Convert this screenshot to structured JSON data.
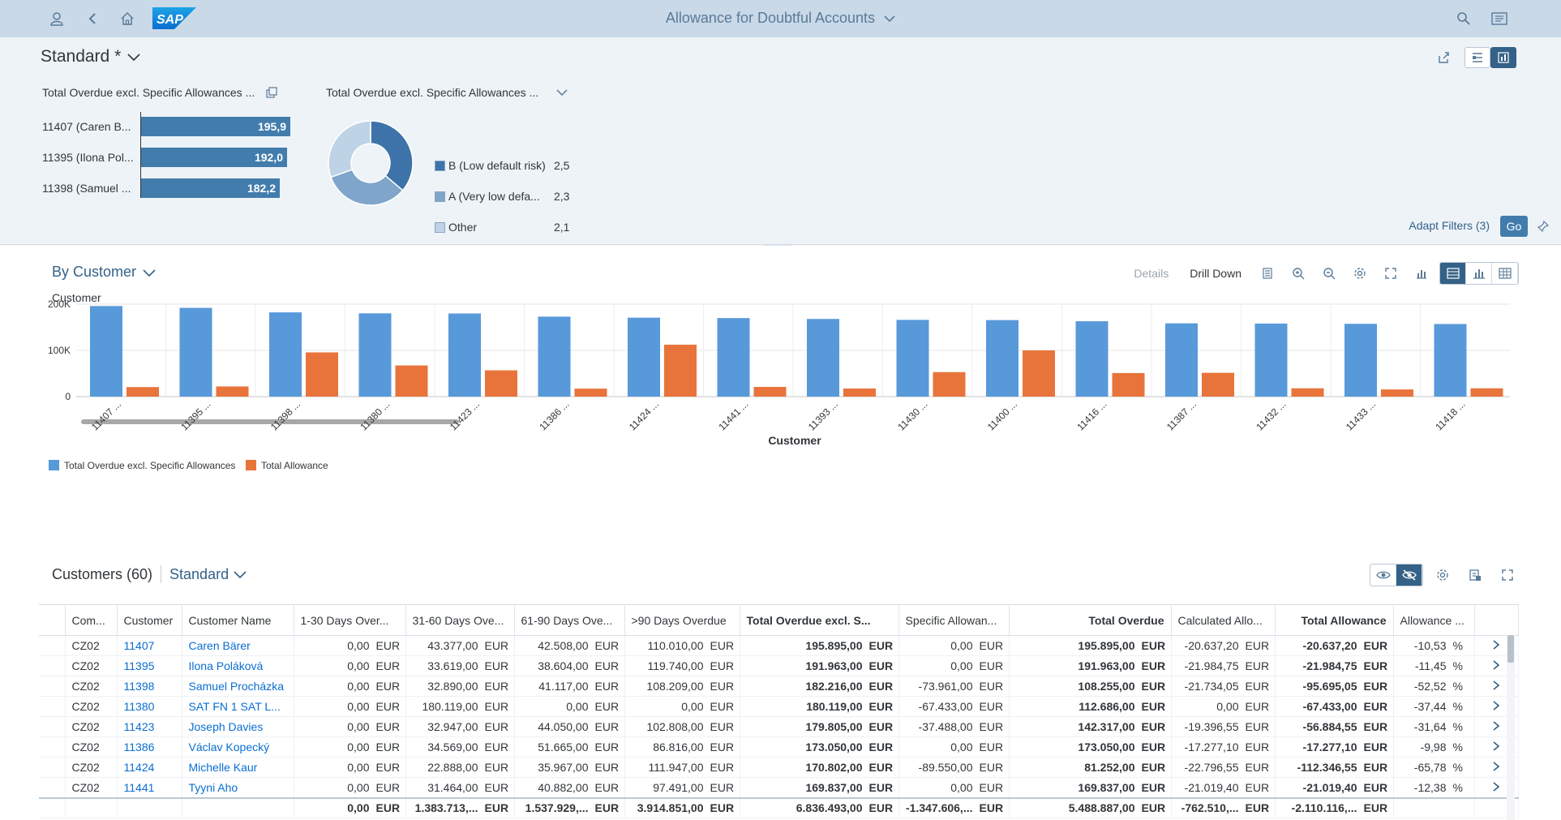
{
  "shell": {
    "title": "Allowance for Doubtful Accounts",
    "logo_text": "SAP"
  },
  "header": {
    "variant": "Standard *",
    "adapt_filters": "Adapt Filters (3)",
    "go": "Go"
  },
  "kpi_bar": {
    "title": "Total Overdue excl. Specific Allowances ...",
    "items": [
      {
        "label": "11407 (Caren B...",
        "value": "195,9",
        "fraction": 1.0
      },
      {
        "label": "11395 (Ilona Pol...",
        "value": "192,0",
        "fraction": 0.98
      },
      {
        "label": "11398 (Samuel ...",
        "value": "182,2",
        "fraction": 0.93
      }
    ]
  },
  "kpi_donut": {
    "title": "Total Overdue excl. Specific Allowances ...",
    "items": [
      {
        "label": "B (Low default risk)",
        "value": "2,5",
        "amount": 2.5,
        "color": "#3d73a8"
      },
      {
        "label": "A (Very low defa...",
        "value": "2,3",
        "amount": 2.3,
        "color": "#7fa5ca"
      },
      {
        "label": "Other",
        "value": "2,1",
        "amount": 2.1,
        "color": "#bfd3e6"
      }
    ]
  },
  "chart_section": {
    "view": "By Customer",
    "toolbar": {
      "details": "Details",
      "drill_down": "Drill Down"
    }
  },
  "chart_data": {
    "type": "bar",
    "title": "Customer",
    "xlabel": "Customer",
    "ylabel": "",
    "ylim": [
      0,
      200000
    ],
    "yticks": [
      {
        "value": 0,
        "label": "0"
      },
      {
        "value": 100000,
        "label": "100K"
      },
      {
        "value": 200000,
        "label": "200K"
      }
    ],
    "categories": [
      "11407 ...",
      "11395 ...",
      "11398 ...",
      "11380 ...",
      "11423 ...",
      "11386 ...",
      "11424 ...",
      "11441 ...",
      "11393 ...",
      "11430 ...",
      "11400 ...",
      "11416 ...",
      "11387 ...",
      "11432 ...",
      "11433 ...",
      "11418 ..."
    ],
    "series": [
      {
        "name": "Total Overdue excl. Specific Allowances",
        "color": "#5899da",
        "values": [
          195895,
          191963,
          182216,
          180119,
          179805,
          173050,
          170802,
          169837,
          168000,
          166000,
          165500,
          163000,
          158500,
          158000,
          157500,
          157000
        ]
      },
      {
        "name": "Total Allowance",
        "color": "#e8743b",
        "values": [
          20637,
          21985,
          95695,
          67433,
          56885,
          17277,
          112347,
          21019,
          17500,
          53000,
          100000,
          51000,
          51500,
          18000,
          15500,
          18000
        ]
      }
    ],
    "grid": true,
    "legend": "bottom-left"
  },
  "table": {
    "title": "Customers (60)",
    "variant": "Standard",
    "columns": [
      {
        "label": "",
        "cls": ""
      },
      {
        "label": "Com...",
        "cls": ""
      },
      {
        "label": "Customer",
        "cls": ""
      },
      {
        "label": "Customer Name",
        "cls": ""
      },
      {
        "label": "1-30 Days Over...",
        "cls": ""
      },
      {
        "label": "31-60 Days Ove...",
        "cls": ""
      },
      {
        "label": "61-90 Days Ove...",
        "cls": ""
      },
      {
        "label": ">90 Days Overdue",
        "cls": ""
      },
      {
        "label": "Total Overdue excl. S...",
        "cls": "bold"
      },
      {
        "label": "Specific Allowan...",
        "cls": ""
      },
      {
        "label": "Total Overdue",
        "cls": "num bold"
      },
      {
        "label": "Calculated Allo...",
        "cls": ""
      },
      {
        "label": "Total Allowance",
        "cls": "num bold"
      },
      {
        "label": "Allowance ...",
        "cls": ""
      },
      {
        "label": "",
        "cls": ""
      }
    ],
    "currency": "EUR",
    "percent": "%",
    "rows": [
      {
        "co": "CZ02",
        "cust": "11407",
        "name": "Caren Bärer",
        "d1": "0,00",
        "d2": "43.377,00",
        "d3": "42.508,00",
        "d4": "110.010,00",
        "tox": "195.895,00",
        "spec": "0,00",
        "to": "195.895,00",
        "calc": "-20.637,20",
        "ta": "-20.637,20",
        "pct": "-10,53"
      },
      {
        "co": "CZ02",
        "cust": "11395",
        "name": "Ilona Poláková",
        "d1": "0,00",
        "d2": "33.619,00",
        "d3": "38.604,00",
        "d4": "119.740,00",
        "tox": "191.963,00",
        "spec": "0,00",
        "to": "191.963,00",
        "calc": "-21.984,75",
        "ta": "-21.984,75",
        "pct": "-11,45"
      },
      {
        "co": "CZ02",
        "cust": "11398",
        "name": "Samuel Procházka",
        "d1": "0,00",
        "d2": "32.890,00",
        "d3": "41.117,00",
        "d4": "108.209,00",
        "tox": "182.216,00",
        "spec": "-73.961,00",
        "to": "108.255,00",
        "calc": "-21.734,05",
        "ta": "-95.695,05",
        "pct": "-52,52"
      },
      {
        "co": "CZ02",
        "cust": "11380",
        "name": "SAT FN 1 SAT L...",
        "d1": "0,00",
        "d2": "180.119,00",
        "d3": "0,00",
        "d4": "0,00",
        "tox": "180.119,00",
        "spec": "-67.433,00",
        "to": "112.686,00",
        "calc": "0,00",
        "ta": "-67.433,00",
        "pct": "-37,44"
      },
      {
        "co": "CZ02",
        "cust": "11423",
        "name": "Joseph Davies",
        "d1": "0,00",
        "d2": "32.947,00",
        "d3": "44.050,00",
        "d4": "102.808,00",
        "tox": "179.805,00",
        "spec": "-37.488,00",
        "to": "142.317,00",
        "calc": "-19.396,55",
        "ta": "-56.884,55",
        "pct": "-31,64"
      },
      {
        "co": "CZ02",
        "cust": "11386",
        "name": "Václav Kopecký",
        "d1": "0,00",
        "d2": "34.569,00",
        "d3": "51.665,00",
        "d4": "86.816,00",
        "tox": "173.050,00",
        "spec": "0,00",
        "to": "173.050,00",
        "calc": "-17.277,10",
        "ta": "-17.277,10",
        "pct": "-9,98"
      },
      {
        "co": "CZ02",
        "cust": "11424",
        "name": "Michelle Kaur",
        "d1": "0,00",
        "d2": "22.888,00",
        "d3": "35.967,00",
        "d4": "111.947,00",
        "tox": "170.802,00",
        "spec": "-89.550,00",
        "to": "81.252,00",
        "calc": "-22.796,55",
        "ta": "-112.346,55",
        "pct": "-65,78"
      },
      {
        "co": "CZ02",
        "cust": "11441",
        "name": "Tyyni Aho",
        "d1": "0,00",
        "d2": "31.464,00",
        "d3": "40.882,00",
        "d4": "97.491,00",
        "tox": "169.837,00",
        "spec": "0,00",
        "to": "169.837,00",
        "calc": "-21.019,40",
        "ta": "-21.019,40",
        "pct": "-12,38"
      }
    ],
    "totals": {
      "d1": "0,00",
      "d2": "1.383.713,...",
      "d3": "1.537.929,...",
      "d4": "3.914.851,00",
      "tox": "6.836.493,00",
      "spec": "-1.347.606,...",
      "to": "5.488.887,00",
      "calc": "-762.510,...",
      "ta": "-2.110.116,..."
    }
  }
}
